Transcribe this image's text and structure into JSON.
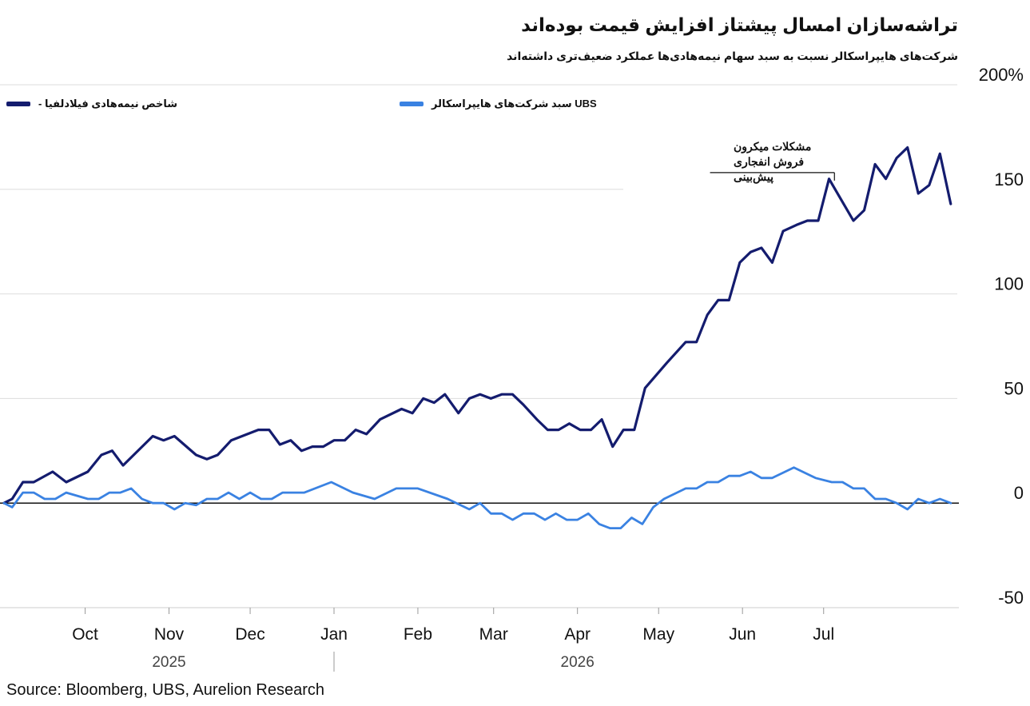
{
  "header": {
    "title": "تراشه‌سازان امسال پیشتاز افزایش قیمت بوده‌اند",
    "subtitle": "شرکت‌های هایپراسکالر نسبت به سبد سهام نیمه‌هادی‌ها عملکرد ضعیف‌تری داشته‌اند"
  },
  "source": "Source: Bloomberg, UBS, Aurelion Research",
  "chart_data": {
    "type": "line",
    "y_ticks": [
      {
        "value": 200,
        "label": "200%"
      },
      {
        "value": 150,
        "label": "150"
      },
      {
        "value": 100,
        "label": "100"
      },
      {
        "value": 50,
        "label": "50"
      },
      {
        "value": 0,
        "label": "0"
      },
      {
        "value": -50,
        "label": "-50"
      }
    ],
    "ylim": [
      -50,
      200
    ],
    "xlim": [
      "2025-09-01",
      "2026-08-20"
    ],
    "x_ticks": [
      {
        "date": "2025-10-01",
        "label": "Oct"
      },
      {
        "date": "2025-11-01",
        "label": "Nov"
      },
      {
        "date": "2025-12-01",
        "label": "Dec"
      },
      {
        "date": "2026-01-01",
        "label": "Jan"
      },
      {
        "date": "2026-02-01",
        "label": "Feb"
      },
      {
        "date": "2026-03-01",
        "label": "Mar"
      },
      {
        "date": "2026-04-01",
        "label": "Apr"
      },
      {
        "date": "2026-05-01",
        "label": "May"
      },
      {
        "date": "2026-06-01",
        "label": "Jun"
      },
      {
        "date": "2026-07-01",
        "label": "Jul"
      }
    ],
    "years": [
      {
        "label": "2025",
        "date": "2025-11-01"
      },
      {
        "label": "2026",
        "date": "2026-04-01"
      }
    ],
    "year_divider": "2026-01-01",
    "zero_line": true,
    "grid": true,
    "legend_position": "top",
    "annotation": {
      "lines": [
        "مشکلات میکرون",
        "فروش انفجاری",
        "پیش‌بینی"
      ],
      "date_from": "2026-05-20",
      "date_to": "2026-07-05",
      "value": 158
    },
    "series": [
      {
        "name": "شاخص نیمه‌هادی فیلادلفیا -",
        "color": "#141c6e",
        "points": [
          [
            "2025-09-01",
            0
          ],
          [
            "2025-09-04",
            2
          ],
          [
            "2025-09-08",
            10
          ],
          [
            "2025-09-12",
            10
          ],
          [
            "2025-09-19",
            15
          ],
          [
            "2025-09-24",
            10
          ],
          [
            "2025-10-02",
            15
          ],
          [
            "2025-10-07",
            23
          ],
          [
            "2025-10-11",
            25
          ],
          [
            "2025-10-15",
            18
          ],
          [
            "2025-10-26",
            32
          ],
          [
            "2025-10-30",
            30
          ],
          [
            "2025-11-03",
            32
          ],
          [
            "2025-11-11",
            23
          ],
          [
            "2025-11-15",
            21
          ],
          [
            "2025-11-19",
            23
          ],
          [
            "2025-11-24",
            30
          ],
          [
            "2025-12-04",
            35
          ],
          [
            "2025-12-08",
            35
          ],
          [
            "2025-12-12",
            28
          ],
          [
            "2025-12-16",
            30
          ],
          [
            "2025-12-20",
            25
          ],
          [
            "2025-12-24",
            27
          ],
          [
            "2025-12-28",
            27
          ],
          [
            "2026-01-01",
            30
          ],
          [
            "2026-01-05",
            30
          ],
          [
            "2026-01-09",
            35
          ],
          [
            "2026-01-13",
            33
          ],
          [
            "2026-01-18",
            40
          ],
          [
            "2026-01-26",
            45
          ],
          [
            "2026-01-30",
            43
          ],
          [
            "2026-02-03",
            50
          ],
          [
            "2026-02-07",
            48
          ],
          [
            "2026-02-11",
            52
          ],
          [
            "2026-02-16",
            43
          ],
          [
            "2026-02-20",
            50
          ],
          [
            "2026-02-24",
            52
          ],
          [
            "2026-02-28",
            50
          ],
          [
            "2026-03-04",
            52
          ],
          [
            "2026-03-08",
            52
          ],
          [
            "2026-03-12",
            47
          ],
          [
            "2026-03-17",
            40
          ],
          [
            "2026-03-21",
            35
          ],
          [
            "2026-03-25",
            35
          ],
          [
            "2026-03-29",
            38
          ],
          [
            "2026-04-02",
            35
          ],
          [
            "2026-04-06",
            35
          ],
          [
            "2026-04-10",
            40
          ],
          [
            "2026-04-14",
            27
          ],
          [
            "2026-04-18",
            35
          ],
          [
            "2026-04-22",
            35
          ],
          [
            "2026-04-26",
            55
          ],
          [
            "2026-05-04",
            67
          ],
          [
            "2026-05-11",
            77
          ],
          [
            "2026-05-15",
            77
          ],
          [
            "2026-05-19",
            90
          ],
          [
            "2026-05-23",
            97
          ],
          [
            "2026-05-27",
            97
          ],
          [
            "2026-05-31",
            115
          ],
          [
            "2026-06-04",
            120
          ],
          [
            "2026-06-08",
            122
          ],
          [
            "2026-06-12",
            115
          ],
          [
            "2026-06-16",
            130
          ],
          [
            "2026-06-21",
            133
          ],
          [
            "2026-06-25",
            135
          ],
          [
            "2026-06-29",
            135
          ],
          [
            "2026-07-03",
            155
          ],
          [
            "2026-07-12",
            135
          ],
          [
            "2026-07-16",
            140
          ],
          [
            "2026-07-20",
            162
          ],
          [
            "2026-07-24",
            155
          ],
          [
            "2026-07-28",
            165
          ],
          [
            "2026-08-01",
            170
          ],
          [
            "2026-08-05",
            148
          ],
          [
            "2026-08-09",
            152
          ],
          [
            "2026-08-13",
            167
          ],
          [
            "2026-08-17",
            143
          ]
        ]
      },
      {
        "name": "UBS سبد شرکت‌های هایپراسکالر",
        "color": "#3a82e2",
        "points": [
          [
            "2025-09-01",
            0
          ],
          [
            "2025-09-04",
            -2
          ],
          [
            "2025-09-08",
            5
          ],
          [
            "2025-09-12",
            5
          ],
          [
            "2025-09-16",
            2
          ],
          [
            "2025-09-20",
            2
          ],
          [
            "2025-09-24",
            5
          ],
          [
            "2025-10-02",
            2
          ],
          [
            "2025-10-06",
            2
          ],
          [
            "2025-10-10",
            5
          ],
          [
            "2025-10-14",
            5
          ],
          [
            "2025-10-18",
            7
          ],
          [
            "2025-10-22",
            2
          ],
          [
            "2025-10-26",
            0
          ],
          [
            "2025-10-30",
            0
          ],
          [
            "2025-11-03",
            -3
          ],
          [
            "2025-11-07",
            0
          ],
          [
            "2025-11-11",
            -1
          ],
          [
            "2025-11-15",
            2
          ],
          [
            "2025-11-19",
            2
          ],
          [
            "2025-11-23",
            5
          ],
          [
            "2025-11-27",
            2
          ],
          [
            "2025-12-01",
            5
          ],
          [
            "2025-12-05",
            2
          ],
          [
            "2025-12-09",
            2
          ],
          [
            "2025-12-13",
            5
          ],
          [
            "2025-12-21",
            5
          ],
          [
            "2025-12-31",
            10
          ],
          [
            "2026-01-08",
            5
          ],
          [
            "2026-01-16",
            2
          ],
          [
            "2026-01-24",
            7
          ],
          [
            "2026-02-01",
            7
          ],
          [
            "2026-02-12",
            2
          ],
          [
            "2026-02-20",
            -3
          ],
          [
            "2026-02-24",
            0
          ],
          [
            "2026-02-28",
            -5
          ],
          [
            "2026-03-04",
            -5
          ],
          [
            "2026-03-08",
            -8
          ],
          [
            "2026-03-12",
            -5
          ],
          [
            "2026-03-16",
            -5
          ],
          [
            "2026-03-20",
            -8
          ],
          [
            "2026-03-24",
            -5
          ],
          [
            "2026-03-28",
            -8
          ],
          [
            "2026-04-01",
            -8
          ],
          [
            "2026-04-05",
            -5
          ],
          [
            "2026-04-09",
            -10
          ],
          [
            "2026-04-13",
            -12
          ],
          [
            "2026-04-17",
            -12
          ],
          [
            "2026-04-21",
            -7
          ],
          [
            "2026-04-25",
            -10
          ],
          [
            "2026-04-29",
            -2
          ],
          [
            "2026-05-03",
            2
          ],
          [
            "2026-05-11",
            7
          ],
          [
            "2026-05-15",
            7
          ],
          [
            "2026-05-19",
            10
          ],
          [
            "2026-05-23",
            10
          ],
          [
            "2026-05-27",
            13
          ],
          [
            "2026-05-31",
            13
          ],
          [
            "2026-06-04",
            15
          ],
          [
            "2026-06-08",
            12
          ],
          [
            "2026-06-12",
            12
          ],
          [
            "2026-06-20",
            17
          ],
          [
            "2026-06-28",
            12
          ],
          [
            "2026-07-04",
            10
          ],
          [
            "2026-07-08",
            10
          ],
          [
            "2026-07-12",
            7
          ],
          [
            "2026-07-16",
            7
          ],
          [
            "2026-07-20",
            2
          ],
          [
            "2026-07-24",
            2
          ],
          [
            "2026-07-28",
            0
          ],
          [
            "2026-08-01",
            -3
          ],
          [
            "2026-08-05",
            2
          ],
          [
            "2026-08-09",
            0
          ],
          [
            "2026-08-13",
            2
          ],
          [
            "2026-08-17",
            0
          ]
        ]
      }
    ]
  }
}
